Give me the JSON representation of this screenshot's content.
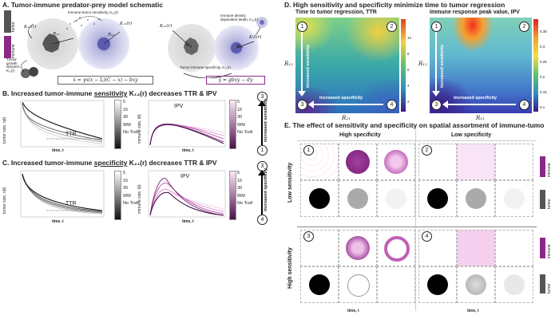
{
  "panelA": {
    "title": "A. Tumor-immune predator-prey model schematic",
    "bar_tumor": "tumor",
    "bar_immune": "immune",
    "k11": "K₁₁(r)",
    "r11": "R₁₁",
    "k12": "K₁₂(r)",
    "r12": "R₁₂",
    "k21": "K₂₁(r)",
    "r21": "R₂₁",
    "r22": "R₂₂",
    "k22": "K₂₂(r)",
    "note_itsens": "Immune-tumor sensitivity, K₁₂(r)",
    "note_growth": "Tumor growth dynamic, K₁₁(r)",
    "note_tisens": "Tumor-immune specificity, K₂₁(r)",
    "note_death": "Immune density dependent death, K₂₂(r)",
    "eq1": "ẋ = γx(x − L)(C − x) − bxy",
    "eq2": "ẏ = gbxy − dy"
  },
  "panelB": {
    "title_pre": "B. Increased tumor-immune ",
    "title_ul": "sensitivity",
    "title_post": " K₁₂(r) decreases TTR & IPV",
    "ylabel_left": "tumor size, n(t)",
    "ylabel_right": "immune size, l(t)",
    "xlabel": "time, t",
    "ttr": "TTR",
    "ipv": "IPV",
    "legend": [
      "5",
      "15",
      "30",
      "WM",
      "No Tcell"
    ],
    "arrow_label": "increased sensitivity",
    "arrow_top": "3",
    "arrow_bottom": "1"
  },
  "panelC": {
    "title_pre": "C. Increased tumor-immune ",
    "title_ul": "specificity",
    "title_post": " K₂₁(r) decreases TTR & IPV",
    "ylabel_left": "tumor size, n(t)",
    "ylabel_right": "immune size, l(t)",
    "xlabel": "time, t",
    "ttr": "TTR",
    "ipv": "IPV",
    "legend": [
      "5",
      "15",
      "30",
      "WM",
      "No Tcell"
    ],
    "arrow_label": "increased specificity",
    "arrow_top": "3",
    "arrow_bottom": "4"
  },
  "panelD": {
    "title": "D. High sensitivity and specificity minimize time to tumor regression",
    "left_title": "Time to tumor regression, TTR",
    "right_title": "Immune response peak value, IPV",
    "ylabel": "R₁₂",
    "xlabel": "R₂₁",
    "arrow_sens": "increased sensitivity",
    "arrow_spec": "increased specificity",
    "corners": [
      "1",
      "2",
      "3",
      "4"
    ],
    "left_cbar_ticks": [
      "10",
      "8",
      "6",
      "4",
      "2"
    ],
    "right_cbar_ticks": [
      "0.35",
      "0.3",
      "0.25",
      "0.2",
      "0.15",
      "0.1"
    ],
    "x_ticks": [
      "10",
      "20",
      "30",
      "40"
    ],
    "y_ticks": [
      "40",
      "30",
      "20",
      "10"
    ]
  },
  "panelE": {
    "title": "E. The effect of sensitivity and specificity on spatial assortment of immune-tumo",
    "col_high": "High specificity",
    "col_low": "Low specificity",
    "row_low": "Low sensitivity",
    "row_high": "High sensitivity",
    "bar_immune": "immune",
    "bar_tumor": "tumor",
    "xlabel": "time, t",
    "labels": [
      "1",
      "2",
      "3",
      "4"
    ]
  },
  "chart_data": [
    {
      "type": "line",
      "panel": "B-left",
      "series": [
        {
          "name": "5",
          "color": "#f0f0f0"
        },
        {
          "name": "15",
          "color": "#cfcfcf"
        },
        {
          "name": "30",
          "color": "#a0a0a0"
        },
        {
          "name": "WM",
          "color": "#606060"
        },
        {
          "name": "No Tcell",
          "color": "#111111"
        }
      ],
      "xlabel": "time, t",
      "ylabel": "tumor size, n(t)",
      "x_ticks": [
        "0",
        "5",
        "10",
        "15",
        "20"
      ],
      "y_ticks": [
        "0",
        "0.05",
        "0.1",
        "0.15",
        "0.2",
        "0.25"
      ]
    },
    {
      "type": "line",
      "panel": "B-right",
      "series": [
        {
          "name": "5",
          "color": "#f4d8f0"
        },
        {
          "name": "15",
          "color": "#e29ddb"
        },
        {
          "name": "30",
          "color": "#c060b8"
        },
        {
          "name": "WM",
          "color": "#8b2a86"
        },
        {
          "name": "No Tcell",
          "color": "#4a0f48"
        }
      ],
      "xlabel": "time, t",
      "ylabel": "immune size, l(t)",
      "x_ticks": [
        "0",
        "5",
        "10",
        "15",
        "20"
      ],
      "y_ticks": [
        "0",
        "0.02",
        "0.04",
        "0.06",
        "0.08",
        "0.1",
        "0.12"
      ]
    },
    {
      "type": "line",
      "panel": "C-left",
      "xlabel": "time, t",
      "ylabel": "tumor size, n(t)",
      "x_ticks": [
        "0",
        "5",
        "10",
        "15",
        "20"
      ],
      "y_ticks": [
        "0",
        "0.05",
        "0.1",
        "0.15",
        "0.2",
        "0.25"
      ]
    },
    {
      "type": "line",
      "panel": "C-right",
      "xlabel": "time, t",
      "ylabel": "immune size, l(t)",
      "x_ticks": [
        "0",
        "5",
        "10",
        "15",
        "20"
      ],
      "y_ticks": [
        "0",
        "0.05",
        "0.1",
        "0.15",
        "0.2",
        "0.25",
        "0.3",
        "0.35"
      ]
    },
    {
      "type": "heatmap",
      "panel": "D-left",
      "title": "Time to tumor regression, TTR",
      "xlabel": "R₂₁",
      "ylabel": "R₁₂",
      "xlim": [
        1,
        45
      ],
      "ylim": [
        1,
        45
      ],
      "zrange": [
        1,
        11
      ]
    },
    {
      "type": "heatmap",
      "panel": "D-right",
      "title": "Immune response peak value, IPV",
      "xlabel": "R₂₁",
      "ylabel": "R₁₂",
      "xlim": [
        1,
        45
      ],
      "ylim": [
        1,
        45
      ],
      "zrange": [
        0.08,
        0.37
      ]
    }
  ]
}
